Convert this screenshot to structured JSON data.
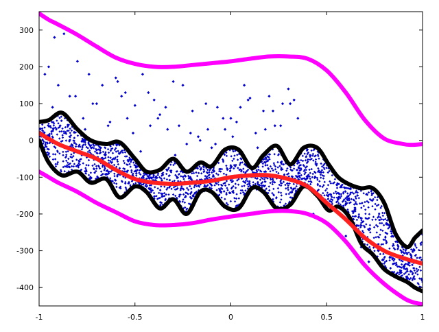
{
  "chart_data": {
    "type": "scatter",
    "title": "",
    "xlabel": "",
    "ylabel": "",
    "xlim": [
      -1,
      1
    ],
    "ylim": [
      -450,
      350
    ],
    "grid": false,
    "legend": "none",
    "x_ticks": [
      {
        "value": -1,
        "label": "-1"
      },
      {
        "value": -0.5,
        "label": "-0.5"
      },
      {
        "value": 0,
        "label": "0"
      },
      {
        "value": 0.5,
        "label": "0.5"
      },
      {
        "value": 1,
        "label": "1"
      }
    ],
    "y_ticks": [
      {
        "value": 300,
        "label": "300"
      },
      {
        "value": 200,
        "label": "200"
      },
      {
        "value": 100,
        "label": "100"
      },
      {
        "value": 0,
        "label": "0"
      },
      {
        "value": -100,
        "label": "-100"
      },
      {
        "value": -200,
        "label": "-200"
      },
      {
        "value": -300,
        "label": "-300"
      },
      {
        "value": -400,
        "label": "-400"
      }
    ],
    "colors": {
      "mean": "#ff2020",
      "envelope": "#000000",
      "outer_bound": "#ff00ff",
      "points": "#0000cc",
      "axis": "#000000"
    },
    "mean_curve": {
      "x": [
        -1,
        -0.9,
        -0.8,
        -0.7,
        -0.6,
        -0.5,
        -0.4,
        -0.3,
        -0.2,
        -0.1,
        0,
        0.1,
        0.2,
        0.3,
        0.4,
        0.5,
        0.6,
        0.7,
        0.8,
        0.9,
        1
      ],
      "y": [
        20,
        -10,
        -30,
        -50,
        -80,
        -105,
        -115,
        -118,
        -115,
        -110,
        -100,
        -95,
        -95,
        -105,
        -125,
        -170,
        -215,
        -265,
        -300,
        -320,
        -335
      ]
    },
    "envelope_upper": {
      "x": [
        -1,
        -0.95,
        -0.88,
        -0.8,
        -0.73,
        -0.65,
        -0.58,
        -0.5,
        -0.44,
        -0.37,
        -0.3,
        -0.23,
        -0.16,
        -0.1,
        -0.03,
        0.04,
        0.11,
        0.17,
        0.24,
        0.31,
        0.38,
        0.45,
        0.51,
        0.56,
        0.62,
        0.68,
        0.74,
        0.8,
        0.86,
        0.92,
        0.96,
        1
      ],
      "y": [
        50,
        55,
        75,
        30,
        0,
        -10,
        -5,
        -50,
        -85,
        -80,
        -50,
        -85,
        -60,
        -70,
        -25,
        -25,
        -75,
        -40,
        -15,
        -65,
        -20,
        -20,
        -65,
        -100,
        -120,
        -130,
        -130,
        -170,
        -255,
        -290,
        -265,
        -245
      ]
    },
    "envelope_lower": {
      "x": [
        -1,
        -0.95,
        -0.88,
        -0.8,
        -0.73,
        -0.65,
        -0.58,
        -0.5,
        -0.44,
        -0.37,
        -0.3,
        -0.23,
        -0.16,
        -0.1,
        -0.03,
        0.04,
        0.11,
        0.17,
        0.24,
        0.31,
        0.38,
        0.45,
        0.51,
        0.56,
        0.62,
        0.68,
        0.74,
        0.8,
        0.86,
        0.92,
        0.96,
        1
      ],
      "y": [
        0,
        -60,
        -95,
        -85,
        -115,
        -105,
        -155,
        -125,
        -140,
        -185,
        -160,
        -200,
        -140,
        -140,
        -180,
        -185,
        -130,
        -140,
        -185,
        -175,
        -125,
        -150,
        -190,
        -180,
        -210,
        -280,
        -310,
        -350,
        -370,
        -385,
        -400,
        -410
      ]
    },
    "outer_upper": {
      "x": [
        -1,
        -0.95,
        -0.9,
        -0.8,
        -0.7,
        -0.6,
        -0.5,
        -0.4,
        -0.3,
        -0.2,
        -0.1,
        0,
        0.1,
        0.2,
        0.3,
        0.4,
        0.5,
        0.6,
        0.7,
        0.8,
        0.9,
        0.95,
        1
      ],
      "y": [
        345,
        328,
        315,
        287,
        255,
        225,
        208,
        200,
        200,
        205,
        210,
        215,
        222,
        228,
        228,
        222,
        190,
        130,
        55,
        5,
        -10,
        -12,
        -10
      ],
      "note_hidden": null
    },
    "outer_lower": {
      "x": [
        -1,
        -0.95,
        -0.9,
        -0.8,
        -0.7,
        -0.6,
        -0.5,
        -0.4,
        -0.3,
        -0.2,
        -0.1,
        0,
        0.1,
        0.2,
        0.3,
        0.4,
        0.5,
        0.6,
        0.7,
        0.8,
        0.9,
        0.95,
        1
      ],
      "y": [
        -85,
        -100,
        -115,
        -140,
        -170,
        -195,
        -220,
        -230,
        -230,
        -225,
        -215,
        -207,
        -200,
        -193,
        -192,
        -200,
        -225,
        -275,
        -340,
        -390,
        -428,
        -440,
        -445
      ]
    },
    "scatter_points": {
      "x": [
        -0.95,
        -0.92,
        -0.9,
        -0.87,
        -0.84,
        -0.8,
        -0.77,
        -0.74,
        -0.7,
        -0.67,
        -0.64,
        -0.6,
        -0.57,
        -0.54,
        -0.5,
        -0.46,
        -0.43,
        -0.4,
        -0.37,
        -0.33,
        -0.3,
        -0.27,
        -0.23,
        -0.2,
        -0.17,
        -0.13,
        -0.1,
        -0.07,
        -0.03,
        0,
        0.03,
        0.07,
        0.1,
        0.13,
        0.17,
        0.2,
        0.23,
        0.27,
        0.3,
        0.33,
        -0.97,
        -0.93,
        -0.89,
        -0.85,
        -0.81,
        -0.76,
        -0.72,
        -0.68,
        -0.63,
        -0.59,
        -0.55,
        -0.51,
        -0.47,
        -0.42,
        -0.38,
        -0.34,
        -0.29,
        -0.25,
        -0.21,
        -0.16,
        -0.12,
        -0.08,
        -0.04,
        0.01,
        0.05,
        0.09,
        0.14,
        0.18,
        0.22,
        0.26,
        0.31,
        0.35,
        0.39,
        0.43,
        0.47,
        0.52,
        0.56,
        0.6,
        0.64,
        0.68,
        0.72,
        0.77,
        0.81,
        0.85,
        0.89,
        0.93,
        0.97
      ],
      "y": [
        200,
        280,
        150,
        290,
        120,
        215,
        60,
        180,
        100,
        150,
        40,
        170,
        120,
        60,
        95,
        180,
        130,
        110,
        70,
        30,
        160,
        40,
        -10,
        80,
        10,
        100,
        -20,
        90,
        30,
        60,
        50,
        150,
        115,
        20,
        80,
        120,
        40,
        100,
        140,
        110,
        180,
        90,
        40,
        60,
        120,
        30,
        100,
        -20,
        50,
        160,
        130,
        20,
        -30,
        40,
        60,
        90,
        -40,
        150,
        20,
        0,
        30,
        -10,
        60,
        10,
        90,
        110,
        -20,
        30,
        80,
        40,
        100,
        60,
        -120,
        -200,
        -150,
        -180,
        -160,
        -260,
        -240,
        -290,
        -330,
        -300,
        -350,
        -370,
        -380,
        -390,
        -400
      ]
    }
  }
}
